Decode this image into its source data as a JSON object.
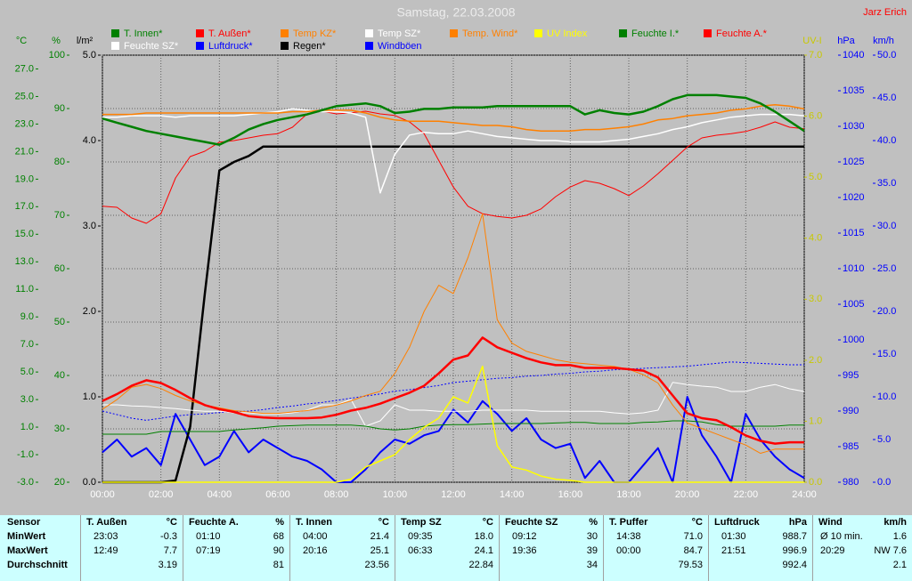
{
  "chart_data": {
    "type": "line",
    "title": "Samstag, 22.03.2008",
    "author": "Jarz Erich",
    "x": [
      0,
      0.5,
      1,
      1.5,
      2,
      2.5,
      3,
      3.5,
      4,
      4.5,
      5,
      5.5,
      6,
      6.5,
      7,
      7.5,
      8,
      8.5,
      9,
      9.5,
      10,
      10.5,
      11,
      11.5,
      12,
      12.5,
      13,
      13.5,
      14,
      14.5,
      15,
      15.5,
      16,
      16.5,
      17,
      17.5,
      18,
      18.5,
      19,
      19.5,
      20,
      20.5,
      21,
      21.5,
      22,
      22.5,
      23,
      23.5,
      24
    ],
    "xlim": [
      0,
      24
    ],
    "xticks": [
      {
        "value": 0,
        "label": "00:00"
      },
      {
        "value": 2,
        "label": "02:00"
      },
      {
        "value": 4,
        "label": "04:00"
      },
      {
        "value": 6,
        "label": "06:00"
      },
      {
        "value": 8,
        "label": "08:00"
      },
      {
        "value": 10,
        "label": "10:00"
      },
      {
        "value": 12,
        "label": "12:00"
      },
      {
        "value": 14,
        "label": "14:00"
      },
      {
        "value": 16,
        "label": "16:00"
      },
      {
        "value": 18,
        "label": "18:00"
      },
      {
        "value": 20,
        "label": "20:00"
      },
      {
        "value": 22,
        "label": "22:00"
      },
      {
        "value": 24,
        "label": "24:00"
      }
    ],
    "xgrid": true,
    "axes": [
      {
        "label": "°C",
        "color": "#008000",
        "side": "left",
        "lim": [
          -3,
          28
        ],
        "ticks": [
          {
            "value": -3,
            "label": "-3.0"
          },
          {
            "value": -1,
            "label": "-1.0"
          },
          {
            "value": 1,
            "label": "1.0"
          },
          {
            "value": 3,
            "label": "3.0"
          },
          {
            "value": 5,
            "label": "5.0"
          },
          {
            "value": 7,
            "label": "7.0"
          },
          {
            "value": 9,
            "label": "9.0"
          },
          {
            "value": 11,
            "label": "11.0"
          },
          {
            "value": 13,
            "label": "13.0"
          },
          {
            "value": 15,
            "label": "15.0"
          },
          {
            "value": 17,
            "label": "17.0"
          },
          {
            "value": 19,
            "label": "19.0"
          },
          {
            "value": 21,
            "label": "21.0"
          },
          {
            "value": 23,
            "label": "23.0"
          },
          {
            "value": 25,
            "label": "25.0"
          },
          {
            "value": 27,
            "label": "27.0"
          }
        ]
      },
      {
        "label": "%",
        "color": "#008000",
        "side": "left",
        "lim": [
          20,
          100
        ],
        "ticks": [
          20,
          30,
          40,
          50,
          60,
          70,
          80,
          90,
          100
        ],
        "grid": true
      },
      {
        "label": "l/m²",
        "color": "#000000",
        "side": "left",
        "lim": [
          0,
          5
        ],
        "ticks": [
          {
            "value": 0,
            "label": "0.0"
          },
          {
            "value": 1,
            "label": "1.0"
          },
          {
            "value": 2,
            "label": "2.0"
          },
          {
            "value": 3,
            "label": "3.0"
          },
          {
            "value": 4,
            "label": "4.0"
          },
          {
            "value": 5,
            "label": "5.0"
          }
        ]
      },
      {
        "label": "UV-I",
        "color": "#c8c800",
        "side": "right",
        "lim": [
          0,
          7
        ],
        "ticks": [
          {
            "value": 0,
            "label": "0.0"
          },
          {
            "value": 1,
            "label": "1.0"
          },
          {
            "value": 2,
            "label": "2.0"
          },
          {
            "value": 3,
            "label": "3.0"
          },
          {
            "value": 4,
            "label": "4.0"
          },
          {
            "value": 5,
            "label": "5.0"
          },
          {
            "value": 6,
            "label": "6.0"
          },
          {
            "value": 7,
            "label": "7.0"
          }
        ]
      },
      {
        "label": "hPa",
        "color": "#0000ff",
        "side": "right",
        "lim": [
          980,
          1040
        ],
        "ticks": [
          980,
          985,
          990,
          995,
          1000,
          1005,
          1010,
          1015,
          1020,
          1025,
          1030,
          1035,
          1040
        ]
      },
      {
        "label": "km/h",
        "color": "#0000ff",
        "side": "right",
        "lim": [
          0,
          50
        ],
        "ticks": [
          {
            "value": 0,
            "label": "0.0"
          },
          {
            "value": 5,
            "label": "5.0"
          },
          {
            "value": 10,
            "label": "10.0"
          },
          {
            "value": 15,
            "label": "15.0"
          },
          {
            "value": 20,
            "label": "20.0"
          },
          {
            "value": 25,
            "label": "25.0"
          },
          {
            "value": 30,
            "label": "30.0"
          },
          {
            "value": 35,
            "label": "35.0"
          },
          {
            "value": 40,
            "label": "40.0"
          },
          {
            "value": 45,
            "label": "45.0"
          },
          {
            "value": 50,
            "label": "50.0"
          }
        ]
      }
    ],
    "series": [
      {
        "name": "T. Innen*",
        "color": "#008000",
        "axis": 0,
        "line_width": 2.5,
        "values": [
          23.4,
          23.1,
          22.8,
          22.5,
          22.3,
          22.1,
          21.9,
          21.7,
          21.5,
          22.0,
          22.6,
          23.0,
          23.3,
          23.5,
          23.7,
          24.0,
          24.3,
          24.4,
          24.5,
          24.3,
          23.8,
          23.9,
          24.1,
          24.1,
          24.2,
          24.2,
          24.2,
          24.3,
          24.3,
          24.3,
          24.3,
          24.3,
          24.3,
          23.7,
          24.0,
          23.8,
          23.7,
          23.9,
          24.3,
          24.8,
          25.1,
          25.1,
          25.1,
          25.0,
          24.9,
          24.5,
          23.9,
          23.2,
          22.5
        ]
      },
      {
        "name": "T. Außen*",
        "color": "#ff0000",
        "axis": 0,
        "line_width": 2.5,
        "values": [
          2.9,
          3.4,
          4.0,
          4.4,
          4.2,
          3.7,
          3.1,
          2.6,
          2.3,
          2.1,
          1.8,
          1.7,
          1.65,
          1.65,
          1.65,
          1.7,
          1.9,
          2.2,
          2.4,
          2.7,
          3.1,
          3.5,
          4.0,
          4.9,
          5.9,
          6.2,
          7.5,
          6.8,
          6.4,
          6.0,
          5.7,
          5.5,
          5.5,
          5.3,
          5.3,
          5.3,
          5.2,
          5.1,
          4.6,
          3.3,
          2.0,
          1.65,
          1.5,
          1.0,
          0.4,
          0.0,
          -0.2,
          -0.1,
          -0.1
        ]
      },
      {
        "name": "Temp KZ*",
        "color": "#ff8000",
        "axis": 0,
        "line_width": 1.5,
        "values": [
          23.7,
          23.7,
          23.7,
          23.8,
          23.8,
          23.8,
          23.8,
          23.8,
          23.8,
          23.8,
          23.8,
          23.8,
          23.8,
          23.9,
          23.9,
          24.0,
          24.0,
          24.0,
          23.8,
          23.5,
          23.3,
          23.2,
          23.2,
          23.2,
          23.1,
          23.0,
          22.9,
          22.9,
          22.8,
          22.6,
          22.5,
          22.5,
          22.5,
          22.6,
          22.6,
          22.7,
          22.8,
          23.0,
          23.3,
          23.4,
          23.6,
          23.7,
          23.8,
          24.0,
          24.1,
          24.3,
          24.4,
          24.3,
          24.1
        ]
      },
      {
        "name": "Temp SZ*",
        "color": "#ffffff",
        "axis": 0,
        "line_width": 1.5,
        "values": [
          23.5,
          23.5,
          23.6,
          23.6,
          23.6,
          23.5,
          23.6,
          23.6,
          23.6,
          23.6,
          23.7,
          23.8,
          23.9,
          24.1,
          24.0,
          23.9,
          23.9,
          23.8,
          23.5,
          18.0,
          20.8,
          22.2,
          22.4,
          22.3,
          22.3,
          22.5,
          22.3,
          22.1,
          22.0,
          21.9,
          21.8,
          21.8,
          21.7,
          21.7,
          21.7,
          21.8,
          21.9,
          22.1,
          22.3,
          22.6,
          22.8,
          23.1,
          23.3,
          23.5,
          23.6,
          23.7,
          23.7,
          23.7,
          23.6
        ]
      },
      {
        "name": "Temp. Wind*",
        "color": "#ff8000",
        "axis": 0,
        "line_width": 1,
        "values": [
          2.3,
          3.0,
          3.9,
          4.1,
          3.8,
          3.3,
          2.9,
          2.6,
          2.4,
          2.2,
          2.1,
          2.0,
          2.0,
          2.1,
          2.2,
          2.4,
          2.6,
          2.9,
          3.3,
          3.6,
          4.9,
          6.8,
          9.4,
          11.3,
          10.7,
          13.3,
          16.5,
          8.8,
          7.1,
          6.5,
          6.2,
          5.9,
          5.7,
          5.6,
          5.5,
          5.4,
          5.2,
          4.8,
          4.2,
          2.6,
          1.3,
          0.9,
          0.5,
          0.1,
          -0.3,
          -0.9,
          -0.6,
          -0.6,
          -0.6
        ]
      },
      {
        "name": "UV Index",
        "color": "#ffff00",
        "axis": 3,
        "line_width": 1.5,
        "values": [
          0,
          0,
          0,
          0,
          0,
          0,
          0,
          0,
          0,
          0,
          0,
          0,
          0,
          0,
          0,
          0,
          0,
          0.05,
          0.25,
          0.35,
          0.45,
          0.7,
          0.9,
          1.05,
          1.4,
          1.3,
          1.9,
          0.6,
          0.25,
          0.2,
          0.1,
          0.05,
          0.03,
          0,
          0,
          0,
          0,
          0,
          0,
          0,
          0,
          0,
          0,
          0,
          0,
          0,
          0,
          0,
          0
        ]
      },
      {
        "name": "Feuchte I.*",
        "color": "#008000",
        "axis": 1,
        "line_width": 1,
        "values": [
          29.0,
          29.0,
          29.0,
          29.0,
          29.5,
          29.5,
          29.5,
          29.5,
          29.5,
          29.8,
          30.0,
          30.2,
          30.5,
          30.6,
          30.7,
          30.7,
          30.7,
          30.7,
          30.5,
          30.0,
          29.8,
          30.0,
          30.5,
          30.7,
          30.8,
          30.8,
          30.9,
          31.0,
          31.0,
          31.0,
          31.0,
          31.1,
          31.2,
          31.2,
          31.0,
          31.0,
          31.0,
          31.2,
          31.3,
          31.5,
          31.5,
          31.3,
          30.8,
          30.5,
          30.5,
          30.5,
          30.5,
          30.7,
          30.7
        ]
      },
      {
        "name": "Feuchte A.*",
        "color": "#ff0000",
        "axis": 1,
        "line_width": 1,
        "values": [
          71.7,
          71.5,
          69.5,
          68.5,
          70.3,
          77.0,
          81.0,
          82.0,
          83.7,
          84.0,
          84.5,
          85.0,
          85.3,
          86.5,
          89.0,
          89.5,
          89.0,
          89.2,
          89.5,
          89.0,
          88.7,
          87.5,
          85.3,
          80.3,
          75.3,
          71.7,
          70.3,
          69.8,
          69.5,
          70.0,
          71.2,
          73.5,
          75.3,
          76.5,
          76.0,
          75.0,
          73.7,
          75.5,
          77.8,
          80.3,
          82.8,
          84.5,
          85.0,
          85.3,
          85.7,
          86.5,
          87.5,
          86.5,
          86.2
        ]
      },
      {
        "name": "Feuchte SZ*",
        "color": "#ffffff",
        "axis": 1,
        "line_width": 1,
        "values": [
          34.5,
          34.5,
          34.3,
          34.2,
          34.0,
          33.8,
          33.5,
          33.3,
          33.3,
          33.0,
          33.0,
          32.8,
          32.8,
          33.0,
          33.5,
          34.5,
          34.5,
          35.5,
          30.5,
          31.5,
          34.5,
          33.5,
          33.5,
          33.3,
          33.3,
          33.3,
          33.5,
          33.5,
          33.5,
          33.5,
          33.3,
          33.3,
          33.3,
          33.3,
          33.3,
          33.0,
          32.8,
          33.0,
          33.5,
          38.7,
          38.3,
          38.0,
          37.8,
          37.0,
          37.0,
          37.8,
          38.3,
          37.5,
          37.0
        ]
      },
      {
        "name": "Luftdruck*",
        "color": "#0000ff",
        "axis": 4,
        "line_width": 1,
        "dotted": true,
        "values": [
          990.0,
          989.5,
          989.0,
          988.7,
          989.0,
          989.3,
          989.5,
          989.6,
          989.8,
          989.9,
          990.0,
          990.2,
          990.5,
          990.7,
          991.0,
          991.2,
          991.5,
          991.8,
          992.1,
          992.4,
          992.8,
          993.0,
          993.3,
          993.6,
          994.0,
          994.2,
          994.4,
          994.6,
          994.7,
          994.9,
          995.0,
          995.2,
          995.3,
          995.5,
          995.6,
          995.8,
          995.9,
          996.0,
          996.1,
          996.2,
          996.3,
          996.5,
          996.7,
          996.9,
          996.8,
          996.7,
          996.6,
          996.5,
          996.5
        ]
      },
      {
        "name": "Regen*",
        "color": "#000000",
        "axis": 2,
        "line_width": 2.5,
        "values": [
          0,
          0,
          0,
          0,
          0,
          0.02,
          0.65,
          2.2,
          3.65,
          3.75,
          3.82,
          3.93,
          3.93,
          3.93,
          3.93,
          3.93,
          3.93,
          3.93,
          3.93,
          3.93,
          3.93,
          3.93,
          3.93,
          3.93,
          3.93,
          3.93,
          3.93,
          3.93,
          3.93,
          3.93,
          3.93,
          3.93,
          3.93,
          3.93,
          3.93,
          3.93,
          3.93,
          3.93,
          3.93,
          3.93,
          3.93,
          3.93,
          3.93,
          3.93,
          3.93,
          3.93,
          3.93,
          3.93,
          3.93
        ]
      },
      {
        "name": "Windböen",
        "color": "#0000ff",
        "axis": 5,
        "line_width": 2,
        "values": [
          3.5,
          5.0,
          3.0,
          4.0,
          2.0,
          8.0,
          5.0,
          2.0,
          3.0,
          6.0,
          3.5,
          5.0,
          4.0,
          3.0,
          2.5,
          1.5,
          0,
          0,
          1.5,
          3.5,
          5.0,
          4.5,
          5.5,
          6.0,
          8.5,
          7.0,
          9.5,
          8.0,
          6.0,
          7.5,
          5.0,
          4.0,
          4.5,
          0.5,
          2.5,
          0,
          0,
          2.0,
          4.0,
          0,
          10.0,
          5.5,
          3.0,
          0,
          8.0,
          5.0,
          3.0,
          1.5,
          0.5
        ]
      }
    ]
  },
  "table": {
    "header": "Sensor",
    "columns": [
      {
        "name": "T. Außen",
        "unit": "°C"
      },
      {
        "name": "Feuchte A.",
        "unit": "%"
      },
      {
        "name": "T. Innen",
        "unit": "°C"
      },
      {
        "name": "Temp SZ",
        "unit": "°C"
      },
      {
        "name": "Feuchte SZ",
        "unit": "%"
      },
      {
        "name": "T. Puffer",
        "unit": "°C"
      },
      {
        "name": "Luftdruck",
        "unit": "hPa"
      },
      {
        "name": "Wind",
        "unit": "km/h"
      }
    ],
    "rows": [
      {
        "label": "MinWert",
        "cells": [
          {
            "time": "23:03",
            "value": "-0.3"
          },
          {
            "time": "01:10",
            "value": "68"
          },
          {
            "time": "04:00",
            "value": "21.4"
          },
          {
            "time": "09:35",
            "value": "18.0"
          },
          {
            "time": "09:12",
            "value": "30"
          },
          {
            "time": "14:38",
            "value": "71.0"
          },
          {
            "time": "01:30",
            "value": "988.7"
          },
          {
            "time": "Ø 10 min.",
            "value": "1.6"
          }
        ]
      },
      {
        "label": "MaxWert",
        "cells": [
          {
            "time": "12:49",
            "value": "7.7"
          },
          {
            "time": "07:19",
            "value": "90"
          },
          {
            "time": "20:16",
            "value": "25.1"
          },
          {
            "time": "06:33",
            "value": "24.1"
          },
          {
            "time": "19:36",
            "value": "39"
          },
          {
            "time": "00:00",
            "value": "84.7"
          },
          {
            "time": "21:51",
            "value": "996.9"
          },
          {
            "time": "20:29",
            "value": "NW 7.6"
          }
        ]
      },
      {
        "label": "Durchschnitt",
        "cells": [
          {
            "value": "3.19"
          },
          {
            "value": "81"
          },
          {
            "value": "23.56"
          },
          {
            "value": "22.84"
          },
          {
            "value": "34"
          },
          {
            "value": "79.53"
          },
          {
            "value": "992.4"
          },
          {
            "value": "2.1"
          }
        ]
      }
    ]
  }
}
